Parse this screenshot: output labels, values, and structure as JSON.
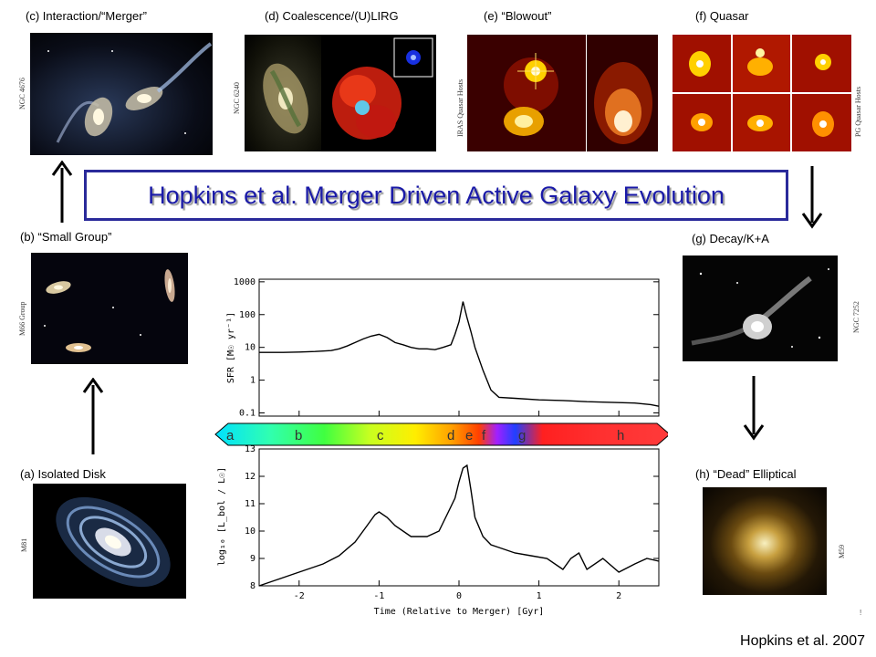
{
  "title": "Hopkins et al. Merger Driven Active Galaxy Evolution",
  "credit": "Hopkins et al. 2007",
  "stray_mark": "!",
  "panels": {
    "a": {
      "label": "(a) Isolated Disk",
      "side_label": "M81"
    },
    "b": {
      "label": "(b) “Small Group”",
      "side_label": "M66 Group"
    },
    "c": {
      "label": "(c) Interaction/“Merger”",
      "side_label": "NGC 4676"
    },
    "d": {
      "label": "(d) Coalescence/(U)LIRG",
      "side_label": "NGC 6240"
    },
    "e": {
      "label": "(e) “Blowout”",
      "side_label": "IRAS Quasar Hosts"
    },
    "f": {
      "label": "(f) Quasar",
      "side_label": "PG Quasar Hosts"
    },
    "g": {
      "label": "(g) Decay/K+A",
      "side_label": "NGC 7252"
    },
    "h": {
      "label": "(h) “Dead” Elliptical",
      "side_label": "M59"
    }
  },
  "stage_bar": {
    "letters": [
      "a",
      "b",
      "c",
      "d",
      "e",
      "f",
      "g",
      "h"
    ]
  },
  "chart_data": [
    {
      "type": "line",
      "ylabel": "SFR [M☉ yr⁻¹]",
      "yscale": "log",
      "ylim": [
        0.08,
        1200
      ],
      "yticks": [
        "1000",
        "100",
        "10",
        "1",
        "0.1"
      ],
      "x": [
        -2.5,
        -2.2,
        -2.0,
        -1.8,
        -1.6,
        -1.5,
        -1.4,
        -1.3,
        -1.2,
        -1.1,
        -1.0,
        -0.9,
        -0.8,
        -0.7,
        -0.6,
        -0.5,
        -0.4,
        -0.3,
        -0.2,
        -0.1,
        -0.05,
        0.0,
        0.05,
        0.1,
        0.15,
        0.2,
        0.3,
        0.4,
        0.5,
        0.7,
        1.0,
        1.3,
        1.6,
        1.9,
        2.2,
        2.4,
        2.5
      ],
      "series": [
        {
          "values": [
            7,
            7,
            7.2,
            7.5,
            8,
            9,
            11,
            14,
            18,
            22,
            25,
            20,
            14,
            12,
            10,
            9,
            9,
            8.5,
            10,
            12,
            25,
            60,
            250,
            80,
            30,
            10,
            2,
            0.5,
            0.3,
            0.28,
            0.25,
            0.24,
            0.22,
            0.21,
            0.2,
            0.18,
            0.16
          ]
        }
      ]
    },
    {
      "type": "line",
      "xlabel": "Time (Relative to Merger) [Gyr]",
      "ylabel": "log₁₀ [L_bol / L☉]",
      "ylim": [
        8,
        13
      ],
      "yticks": [
        "13",
        "12",
        "11",
        "10",
        "9",
        "8"
      ],
      "xlim": [
        -2.5,
        2.5
      ],
      "xticks": [
        "-2",
        "-1",
        "0",
        "1",
        "2"
      ],
      "x": [
        -2.5,
        -2.3,
        -2.1,
        -1.9,
        -1.7,
        -1.5,
        -1.3,
        -1.15,
        -1.05,
        -1.0,
        -0.9,
        -0.8,
        -0.6,
        -0.4,
        -0.25,
        -0.15,
        -0.05,
        0.0,
        0.05,
        0.1,
        0.15,
        0.2,
        0.3,
        0.4,
        0.5,
        0.7,
        0.9,
        1.1,
        1.3,
        1.4,
        1.5,
        1.6,
        1.8,
        2.0,
        2.2,
        2.35,
        2.5
      ],
      "series": [
        {
          "values": [
            8.0,
            8.2,
            8.4,
            8.6,
            8.8,
            9.1,
            9.6,
            10.2,
            10.6,
            10.7,
            10.5,
            10.2,
            9.8,
            9.8,
            10.0,
            10.6,
            11.2,
            11.8,
            12.3,
            12.4,
            11.5,
            10.5,
            9.8,
            9.5,
            9.4,
            9.2,
            9.1,
            9.0,
            8.6,
            9.0,
            9.2,
            8.6,
            9.0,
            8.5,
            8.8,
            9.0,
            8.9
          ]
        }
      ]
    }
  ]
}
